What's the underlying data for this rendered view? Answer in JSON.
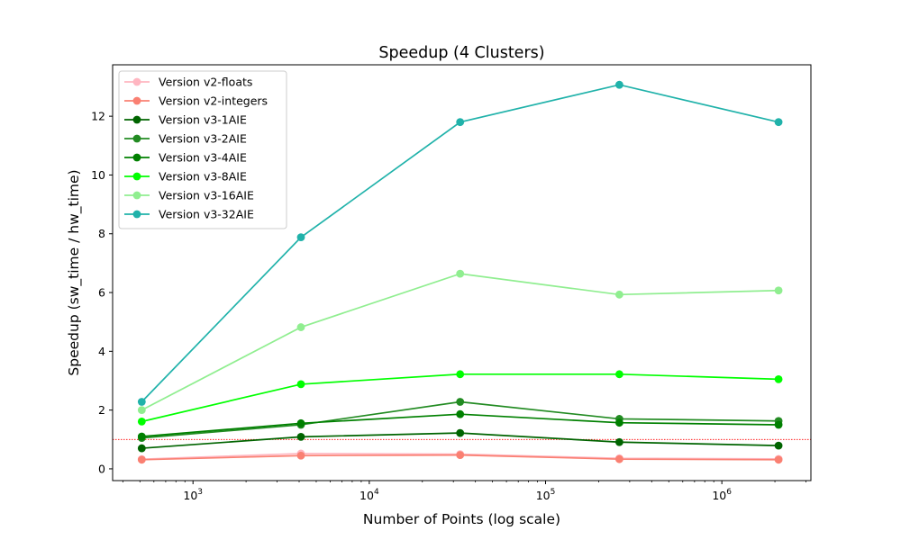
{
  "chart_data": {
    "type": "line",
    "title": "Speedup (4 Clusters)",
    "xlabel": "Number of Points (log scale)",
    "ylabel": "Speedup (sw_time / hw_time)",
    "x_scale": "log",
    "xlim": [
      350,
      3200000
    ],
    "ylim": [
      -0.4,
      13.75
    ],
    "x_ticks": [
      {
        "value": 1000,
        "base": "10",
        "exp": "3"
      },
      {
        "value": 10000,
        "base": "10",
        "exp": "4"
      },
      {
        "value": 100000,
        "base": "10",
        "exp": "5"
      },
      {
        "value": 1000000,
        "base": "10",
        "exp": "6"
      }
    ],
    "y_ticks": [
      {
        "value": 0,
        "label": "0"
      },
      {
        "value": 2,
        "label": "2"
      },
      {
        "value": 4,
        "label": "4"
      },
      {
        "value": 6,
        "label": "6"
      },
      {
        "value": 8,
        "label": "8"
      },
      {
        "value": 10,
        "label": "10"
      },
      {
        "value": 12,
        "label": "12"
      }
    ],
    "reference_line": {
      "y": 1.0,
      "color": "#ff0000",
      "style": "dotted"
    },
    "legend_position": "upper-left",
    "grid": false,
    "x": [
      512,
      4096,
      32768,
      262144,
      2097152
    ],
    "series": [
      {
        "name": "Version v2-floats",
        "color": "#ffb6c1",
        "values": [
          0.33,
          0.52,
          0.5,
          0.36,
          0.34
        ]
      },
      {
        "name": "Version v2-integers",
        "color": "#fa8072",
        "values": [
          0.31,
          0.45,
          0.47,
          0.33,
          0.31
        ]
      },
      {
        "name": "Version v3-1AIE",
        "color": "#006400",
        "values": [
          0.7,
          1.09,
          1.22,
          0.91,
          0.79
        ]
      },
      {
        "name": "Version v3-2AIE",
        "color": "#228b22",
        "values": [
          1.05,
          1.5,
          2.28,
          1.7,
          1.63
        ]
      },
      {
        "name": "Version v3-4AIE",
        "color": "#008000",
        "values": [
          1.1,
          1.55,
          1.86,
          1.57,
          1.5
        ]
      },
      {
        "name": "Version v3-8AIE",
        "color": "#00ff00",
        "values": [
          1.61,
          2.88,
          3.22,
          3.22,
          3.05
        ]
      },
      {
        "name": "Version v3-16AIE",
        "color": "#90ee90",
        "values": [
          2.0,
          4.82,
          6.64,
          5.93,
          6.07
        ]
      },
      {
        "name": "Version v3-32AIE",
        "color": "#20b2aa",
        "values": [
          2.28,
          7.88,
          11.8,
          13.07,
          11.8
        ]
      }
    ]
  }
}
